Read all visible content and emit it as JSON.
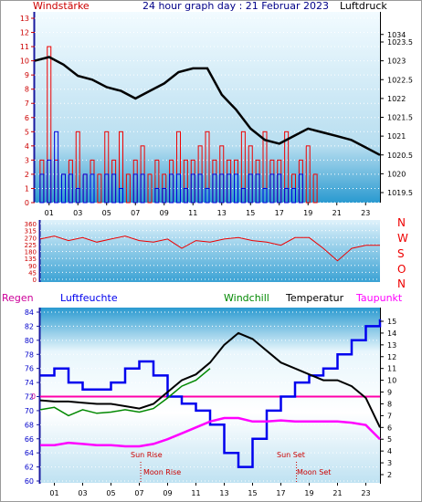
{
  "header": {
    "left_label": "Windstärke",
    "center_label": "24 hour graph day : 21 Februar 2023",
    "right_label": "Luftdruck"
  },
  "time_ticks": [
    "01",
    "03",
    "05",
    "07",
    "09",
    "11",
    "13",
    "15",
    "17",
    "19",
    "21",
    "23"
  ],
  "wind_dir_labels": [
    "N",
    "W",
    "S",
    "O",
    "N"
  ],
  "lower_header": {
    "regen": "Regen",
    "luftfeuchte": "Luftfeuchte",
    "windchill": "Windchill",
    "temperatur": "Temperatur",
    "taupunkt": "Taupunkt"
  },
  "annotations": {
    "sun_rise": "Sun Rise",
    "sun_set": "Sun Set",
    "moon_rise": "Moon Rise",
    "moon_set": "Moon Set",
    "rain_value": "0"
  },
  "colors": {
    "wind": "#ee0000",
    "gust_base": "#0000dd",
    "pressure": "#000000",
    "direction": "#ee0000",
    "humidity": "#0000ee",
    "temperature": "#000000",
    "windchill": "#008800",
    "dewpoint": "#ff00ff",
    "rain": "#cc0099",
    "frame_dark": "#1a1aa0"
  },
  "chart_data": [
    {
      "type": "bar",
      "title": "24 hour graph day : 21 Februar 2023",
      "ylabel": "Windstärke",
      "ylim": [
        0,
        13
      ],
      "yticks": [
        0,
        1,
        2,
        3,
        4,
        5,
        6,
        7,
        8,
        9,
        10,
        11,
        12,
        13
      ],
      "series": [
        {
          "name": "Windstärke",
          "x": [
            0.5,
            1,
            1.5,
            2,
            2.5,
            3,
            3.5,
            4,
            4.5,
            5,
            5.5,
            6,
            6.5,
            7,
            7.5,
            8,
            8.5,
            9,
            9.5,
            10,
            10.5,
            11,
            11.5,
            12,
            12.5,
            13,
            13.5,
            14,
            14.5,
            15,
            15.5,
            16,
            16.5,
            17,
            17.5,
            18,
            18.5,
            19,
            19.5,
            20,
            20.5,
            21,
            21.5,
            22,
            22.5,
            23,
            23.5
          ],
          "values": [
            3,
            11,
            3,
            2,
            3,
            5,
            2,
            3,
            2,
            5,
            3,
            5,
            2,
            3,
            4,
            2,
            3,
            2,
            3,
            5,
            3,
            3,
            4,
            5,
            3,
            4,
            3,
            3,
            5,
            4,
            3,
            5,
            3,
            3,
            5,
            2,
            3,
            4,
            2,
            0,
            0,
            0,
            0,
            0,
            0,
            0,
            0
          ]
        },
        {
          "name": "Windbasis",
          "x": [
            0.5,
            1,
            1.5,
            2,
            2.5,
            3,
            3.5,
            4,
            4.5,
            5,
            5.5,
            6,
            6.5,
            7,
            7.5,
            8,
            8.5,
            9,
            9.5,
            10,
            10.5,
            11,
            11.5,
            12,
            12.5,
            13,
            13.5,
            14,
            14.5,
            15,
            15.5,
            16,
            16.5,
            17,
            17.5,
            18,
            18.5,
            19,
            19.5,
            20,
            20.5,
            21,
            21.5,
            22,
            22.5,
            23,
            23.5
          ],
          "values": [
            2,
            3,
            5,
            2,
            2,
            1,
            2,
            2,
            0,
            2,
            2,
            1,
            0,
            2,
            2,
            0,
            1,
            1,
            2,
            2,
            1,
            2,
            2,
            1,
            2,
            2,
            2,
            2,
            1,
            2,
            2,
            1,
            2,
            2,
            1,
            1,
            2,
            0,
            0,
            0,
            0,
            0,
            0,
            0,
            0,
            0,
            0
          ]
        }
      ]
    },
    {
      "type": "line",
      "ylabel": "Luftdruck",
      "ylim": [
        1019.5,
        1034
      ],
      "yticks": [
        1019.5,
        1020,
        1020.5,
        1021,
        1021.5,
        1022,
        1022.5,
        1023,
        1023.5,
        1034
      ],
      "series": [
        {
          "name": "Luftdruck",
          "x": [
            0,
            1,
            2,
            3,
            4,
            5,
            6,
            7,
            8,
            9,
            10,
            11,
            12,
            13,
            14,
            15,
            16,
            17,
            18,
            19,
            20,
            21,
            22,
            23,
            24
          ],
          "values": [
            1023.0,
            1023.1,
            1022.9,
            1022.6,
            1022.5,
            1022.3,
            1022.2,
            1022.0,
            1022.2,
            1022.4,
            1022.7,
            1022.8,
            1022.8,
            1022.1,
            1021.7,
            1021.2,
            1020.9,
            1020.8,
            1021.0,
            1021.2,
            1021.1,
            1021.0,
            1020.9,
            1020.7,
            1020.5
          ]
        }
      ]
    },
    {
      "type": "line",
      "ylim": [
        0,
        360
      ],
      "yticks": [
        0,
        45,
        90,
        135,
        180,
        225,
        270,
        315,
        360
      ],
      "series": [
        {
          "name": "Windrichtung",
          "x": [
            0,
            1,
            2,
            3,
            4,
            5,
            6,
            7,
            8,
            9,
            10,
            11,
            12,
            13,
            14,
            15,
            16,
            17,
            18,
            19,
            20,
            21,
            22,
            23,
            24
          ],
          "values": [
            260,
            280,
            250,
            270,
            240,
            260,
            280,
            250,
            240,
            260,
            200,
            250,
            240,
            260,
            270,
            250,
            240,
            220,
            270,
            270,
            200,
            120,
            200,
            220,
            220
          ]
        }
      ]
    },
    {
      "type": "line",
      "ylim": [
        60,
        84
      ],
      "yticks": [
        60,
        62,
        64,
        66,
        68,
        70,
        72,
        74,
        76,
        78,
        80,
        82,
        84
      ],
      "y2lim": [
        2,
        15
      ],
      "y2ticks": [
        2,
        3,
        4,
        5,
        6,
        7,
        8,
        9,
        10,
        11,
        12,
        13,
        14,
        15
      ],
      "series": [
        {
          "name": "Luftfeuchte",
          "axis": "left",
          "x": [
            0,
            1,
            2,
            3,
            4,
            5,
            6,
            7,
            8,
            9,
            10,
            11,
            12,
            13,
            14,
            15,
            16,
            17,
            18,
            19,
            20,
            21,
            22,
            23,
            24
          ],
          "values": [
            75,
            76,
            74,
            73,
            73,
            74,
            76,
            77,
            75,
            72,
            71,
            70,
            68,
            64,
            62,
            66,
            70,
            72,
            74,
            75,
            76,
            78,
            80,
            82,
            83
          ]
        },
        {
          "name": "Temperatur",
          "axis": "right",
          "x": [
            0,
            1,
            2,
            3,
            4,
            5,
            6,
            7,
            8,
            9,
            10,
            11,
            12,
            13,
            14,
            15,
            16,
            17,
            18,
            19,
            20,
            21,
            22,
            23,
            24
          ],
          "values": [
            8.3,
            8.2,
            8.2,
            8.1,
            8.0,
            8.0,
            7.8,
            7.6,
            8.0,
            9.0,
            10.0,
            10.5,
            11.5,
            13.0,
            14.0,
            13.5,
            12.5,
            11.5,
            11.0,
            10.5,
            10.0,
            10.0,
            9.5,
            8.5,
            6.0
          ]
        },
        {
          "name": "Windchill",
          "axis": "right",
          "x": [
            0,
            1,
            2,
            3,
            4,
            5,
            6,
            7,
            8,
            9,
            10,
            11,
            12
          ],
          "values": [
            7.5,
            7.7,
            7.0,
            7.5,
            7.2,
            7.3,
            7.5,
            7.3,
            7.6,
            8.5,
            9.5,
            10.0,
            11.0
          ]
        },
        {
          "name": "Taupunkt",
          "axis": "right",
          "x": [
            0,
            1,
            2,
            3,
            4,
            5,
            6,
            7,
            8,
            9,
            10,
            11,
            12,
            13,
            14,
            15,
            16,
            17,
            18,
            19,
            20,
            21,
            22,
            23,
            24
          ],
          "values": [
            4.5,
            4.5,
            4.7,
            4.6,
            4.5,
            4.5,
            4.4,
            4.4,
            4.6,
            5.0,
            5.5,
            6.0,
            6.5,
            6.8,
            6.8,
            6.5,
            6.5,
            6.6,
            6.5,
            6.5,
            6.5,
            6.5,
            6.4,
            6.2,
            5.0
          ]
        },
        {
          "name": "Regen",
          "axis": "left",
          "x": [
            0,
            24
          ],
          "values": [
            72,
            72
          ]
        }
      ]
    }
  ]
}
